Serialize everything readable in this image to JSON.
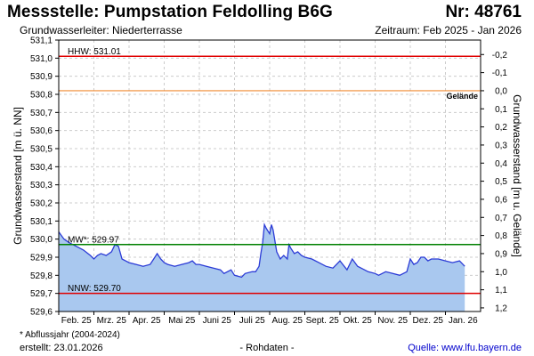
{
  "header": {
    "title": "Messstelle: Pumpstation Feldolling B6G",
    "number": "Nr: 48761",
    "aquifer": "Grundwasserleiter:   Niederterrasse",
    "period": "Zeitraum: Feb 2025 - Jan 2026"
  },
  "footer": {
    "footnote": "* Abflussjahr (2004-2024)",
    "created": "erstellt:  23.01.2026",
    "raw": "- Rohdaten -",
    "source": "Quelle:  www.lfu.bayern.de"
  },
  "colors": {
    "fill": "#a9c8ef",
    "line": "#2b3bd6",
    "hhw": "#e00000",
    "nnw": "#e00000",
    "mw": "#008000",
    "ground": "#f08a30",
    "grid": "#cccccc"
  },
  "chart_data": {
    "type": "area",
    "ylabel": "Grundwasserstand [m ü. NN]",
    "ylabel_right": "Grundwasserstand [m u. Gelände]",
    "ylim": [
      529.6,
      531.1
    ],
    "y_ticks": [
      "529,6",
      "529,7",
      "529,8",
      "529,9",
      "530,0",
      "530,1",
      "530,2",
      "530,3",
      "530,4",
      "530,5",
      "530,6",
      "530,7",
      "530,8",
      "530,9",
      "531,0",
      "531,1"
    ],
    "y_right_ticks": [
      "1,2",
      "1,1",
      "1,0",
      "0,9",
      "0,8",
      "0,7",
      "0,6",
      "0,5",
      "0,4",
      "0,3",
      "0,2",
      "0,1",
      "0,0",
      "-0,1",
      "-0,2"
    ],
    "ground_level": 530.82,
    "ground_label": "Gelände",
    "x_labels": [
      "Feb. 25",
      "Mrz. 25",
      "Apr. 25",
      "Mai 25",
      "Juni 25",
      "Juli 25",
      "Aug. 25",
      "Sept. 25",
      "Okt. 25",
      "Nov. 25",
      "Dez. 25",
      "Jan. 26"
    ],
    "x_range_months": [
      0,
      12
    ],
    "reference_lines": [
      {
        "key": "hhw",
        "label": "HHW: 531.01",
        "value": 531.01
      },
      {
        "key": "mw",
        "label": "MW*: 529.97",
        "value": 529.97
      },
      {
        "key": "nnw",
        "label": "NNW: 529.70",
        "value": 529.7
      }
    ],
    "series": [
      {
        "x": [
          0,
          0.15,
          0.3,
          0.5,
          0.7,
          0.9,
          1.0,
          1.1,
          1.2,
          1.35,
          1.5,
          1.6,
          1.7,
          1.8,
          1.9,
          2.0,
          2.2,
          2.4,
          2.6,
          2.7,
          2.8,
          2.9,
          3.0,
          3.1,
          3.3,
          3.5,
          3.7,
          3.8,
          3.9,
          4.0,
          4.2,
          4.4,
          4.6,
          4.7,
          4.9,
          5.0,
          5.2,
          5.3,
          5.5,
          5.6,
          5.7,
          5.75,
          5.8,
          5.85,
          5.9,
          6.0,
          6.05,
          6.1,
          6.2,
          6.3,
          6.4,
          6.5,
          6.55,
          6.6,
          6.7,
          6.8,
          6.9,
          7.0,
          7.2,
          7.4,
          7.6,
          7.8,
          8.0,
          8.2,
          8.35,
          8.5,
          8.6,
          8.7,
          8.8,
          9.0,
          9.1,
          9.3,
          9.5,
          9.7,
          9.9,
          10.0,
          10.1,
          10.2,
          10.3,
          10.4,
          10.5,
          10.6,
          10.8,
          11.0,
          11.2,
          11.4,
          11.55
        ],
        "values": [
          530.04,
          530.0,
          529.98,
          529.96,
          529.94,
          529.91,
          529.89,
          529.91,
          529.92,
          529.91,
          529.93,
          529.97,
          529.96,
          529.89,
          529.88,
          529.87,
          529.86,
          529.85,
          529.86,
          529.89,
          529.92,
          529.89,
          529.87,
          529.86,
          529.85,
          529.86,
          529.87,
          529.88,
          529.86,
          529.86,
          529.85,
          529.84,
          529.83,
          529.81,
          529.83,
          529.8,
          529.79,
          529.81,
          529.82,
          529.82,
          529.85,
          529.92,
          529.98,
          530.08,
          530.06,
          530.03,
          530.08,
          530.05,
          529.93,
          529.89,
          529.91,
          529.89,
          529.97,
          529.95,
          529.92,
          529.93,
          529.91,
          529.9,
          529.89,
          529.87,
          529.85,
          529.84,
          529.88,
          529.83,
          529.89,
          529.85,
          529.84,
          529.83,
          529.82,
          529.81,
          529.8,
          529.82,
          529.81,
          529.8,
          529.82,
          529.89,
          529.86,
          529.87,
          529.9,
          529.9,
          529.88,
          529.89,
          529.89,
          529.88,
          529.87,
          529.88,
          529.85
        ]
      }
    ],
    "grid": true
  }
}
